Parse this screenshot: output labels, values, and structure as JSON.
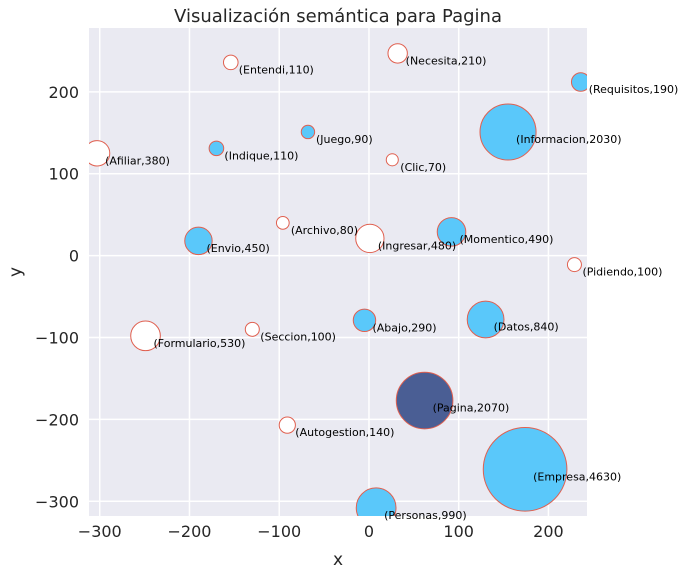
{
  "chart_data": {
    "type": "scatter",
    "title": "Visualización semántica para Pagina",
    "xlabel": "x",
    "ylabel": "y",
    "xlim": [
      -312,
      243
    ],
    "ylim": [
      -318,
      278
    ],
    "xticks": [
      -300,
      -200,
      -100,
      0,
      100,
      200
    ],
    "yticks": [
      -300,
      -200,
      -100,
      0,
      100,
      200
    ],
    "grid": true,
    "colors": {
      "background": "#eaeaf2",
      "grid": "#ffffff",
      "filled": "#5ac8fa",
      "highlight": "#4a5e94",
      "edge": "#e06050",
      "hollow": "#ffffff"
    },
    "points": [
      {
        "label": "(Entendi,110)",
        "word": "Entendi",
        "x": -154,
        "y": 236,
        "size": 110,
        "style": "hollow"
      },
      {
        "label": "(Necesita,210)",
        "word": "Necesita",
        "x": 32,
        "y": 247,
        "size": 210,
        "style": "hollow"
      },
      {
        "label": "(Requisitos,190)",
        "word": "Requisitos",
        "x": 236,
        "y": 212,
        "size": 190,
        "style": "filled"
      },
      {
        "label": "(Juego,90)",
        "word": "Juego",
        "x": -68,
        "y": 151,
        "size": 90,
        "style": "filled"
      },
      {
        "label": "(Informacion,2030)",
        "word": "Informacion",
        "x": 155,
        "y": 151,
        "size": 2030,
        "style": "filled"
      },
      {
        "label": "(Afiliar,380)",
        "word": "Afiliar",
        "x": -303,
        "y": 125,
        "size": 380,
        "style": "hollow"
      },
      {
        "label": "(Indique,110)",
        "word": "Indique",
        "x": -170,
        "y": 131,
        "size": 110,
        "style": "filled"
      },
      {
        "label": "(Clic,70)",
        "word": "Clic",
        "x": 26,
        "y": 117,
        "size": 70,
        "style": "hollow"
      },
      {
        "label": "(Archivo,80)",
        "word": "Archivo",
        "x": -96,
        "y": 40,
        "size": 80,
        "style": "hollow"
      },
      {
        "label": "(Envio,450)",
        "word": "Envio",
        "x": -190,
        "y": 18,
        "size": 450,
        "style": "filled"
      },
      {
        "label": "(Ingresar,480)",
        "word": "Ingresar",
        "x": 1,
        "y": 21,
        "size": 480,
        "style": "hollow"
      },
      {
        "label": "(Momentico,490)",
        "word": "Momentico",
        "x": 92,
        "y": 29,
        "size": 490,
        "style": "filled"
      },
      {
        "label": "(Pidiendo,100)",
        "word": "Pidiendo",
        "x": 229,
        "y": -11,
        "size": 100,
        "style": "hollow"
      },
      {
        "label": "(Abajo,290)",
        "word": "Abajo",
        "x": -5,
        "y": -79,
        "size": 290,
        "style": "filled"
      },
      {
        "label": "(Datos,840)",
        "word": "Datos",
        "x": 130,
        "y": -78,
        "size": 840,
        "style": "filled"
      },
      {
        "label": "(Seccion,100)",
        "word": "Seccion",
        "x": -130,
        "y": -90,
        "size": 100,
        "style": "hollow"
      },
      {
        "label": "(Formulario,530)",
        "word": "Formulario",
        "x": -249,
        "y": -98,
        "size": 530,
        "style": "hollow"
      },
      {
        "label": "(Pagina,2070)",
        "word": "Pagina",
        "x": 62,
        "y": -177,
        "size": 2070,
        "style": "highlight"
      },
      {
        "label": "(Autogestion,140)",
        "word": "Autogestion",
        "x": -91,
        "y": -207,
        "size": 140,
        "style": "hollow"
      },
      {
        "label": "(Empresa,4630)",
        "word": "Empresa",
        "x": 174,
        "y": -261,
        "size": 4630,
        "style": "filled"
      },
      {
        "label": "(Personas,990)",
        "word": "Personas",
        "x": 8,
        "y": -308,
        "size": 990,
        "style": "filled"
      }
    ]
  }
}
